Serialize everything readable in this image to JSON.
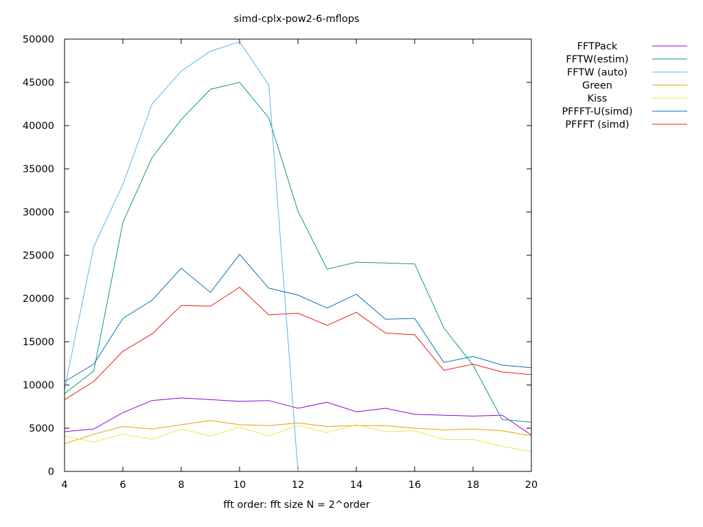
{
  "chart_data": {
    "type": "line",
    "title": "simd-cplx-pow2-6-mflops",
    "xlabel": "fft order: fft size N = 2^order",
    "ylabel": "",
    "xlim": [
      4,
      20
    ],
    "ylim": [
      0,
      50000
    ],
    "xticks": [
      "4",
      "6",
      "8",
      "10",
      "12",
      "14",
      "16",
      "18",
      "20"
    ],
    "yticks": [
      "0",
      "5000",
      "10000",
      "15000",
      "20000",
      "25000",
      "30000",
      "35000",
      "40000",
      "45000",
      "50000"
    ],
    "grid": false,
    "legend_position": "outside-right",
    "series": [
      {
        "name": "FFTPack",
        "color": "#9400d3",
        "x": [
          4,
          5,
          6,
          7,
          8,
          9,
          10,
          11,
          12,
          13,
          14,
          15,
          16,
          17,
          18,
          19,
          20
        ],
        "y": [
          4600,
          4900,
          6800,
          8200,
          8500,
          8300,
          8100,
          8200,
          7300,
          8000,
          6900,
          7300,
          6600,
          6500,
          6400,
          6500,
          4200
        ]
      },
      {
        "name": "FFTW(estim)",
        "color": "#009e73",
        "x": [
          4,
          5,
          6,
          7,
          8,
          9,
          10,
          11,
          12,
          13,
          14,
          15,
          16,
          17,
          18,
          19,
          20
        ],
        "y": [
          9000,
          11600,
          28800,
          36300,
          40700,
          44200,
          45000,
          40900,
          30100,
          23400,
          24200,
          24100,
          24000,
          16600,
          12300,
          6000,
          5700
        ]
      },
      {
        "name": "FFTW (auto)",
        "color": "#56b4e9",
        "x": [
          4,
          5,
          6,
          7,
          8,
          9,
          10,
          11,
          12
        ],
        "y": [
          9500,
          26000,
          33200,
          42500,
          46300,
          48600,
          49700,
          44700,
          0
        ]
      },
      {
        "name": "Green",
        "color": "#e69f00",
        "x": [
          4,
          5,
          6,
          7,
          8,
          9,
          10,
          11,
          12,
          13,
          14,
          15,
          16,
          17,
          18,
          19,
          20
        ],
        "y": [
          3200,
          4300,
          5200,
          4900,
          5400,
          5900,
          5400,
          5300,
          5600,
          5200,
          5300,
          5300,
          5000,
          4800,
          4900,
          4700,
          4100
        ]
      },
      {
        "name": "Kiss",
        "color": "#f0e442",
        "x": [
          4,
          5,
          6,
          7,
          8,
          9,
          10,
          11,
          12,
          13,
          14,
          15,
          16,
          17,
          18,
          19,
          20
        ],
        "y": [
          4100,
          3400,
          4300,
          3700,
          4900,
          4100,
          5100,
          4100,
          5300,
          4500,
          5400,
          4600,
          4700,
          3700,
          3700,
          2900,
          2300
        ]
      },
      {
        "name": "PFFFT-U(simd)",
        "color": "#0072b2",
        "x": [
          4,
          5,
          6,
          7,
          8,
          9,
          10,
          11,
          12,
          13,
          14,
          15,
          16,
          17,
          18,
          19,
          20
        ],
        "y": [
          10400,
          12400,
          17700,
          19800,
          23500,
          20700,
          25100,
          21200,
          20400,
          18900,
          20500,
          17600,
          17700,
          12600,
          13300,
          12300,
          12000
        ]
      },
      {
        "name": "PFFFT (simd)",
        "color": "#e51e10",
        "x": [
          4,
          5,
          6,
          7,
          8,
          9,
          10,
          11,
          12,
          13,
          14,
          15,
          16,
          17,
          18,
          19,
          20
        ],
        "y": [
          8300,
          10400,
          13900,
          15900,
          19200,
          19100,
          21300,
          18100,
          18300,
          16900,
          18400,
          16000,
          15800,
          11700,
          12400,
          11500,
          11200
        ]
      }
    ]
  }
}
